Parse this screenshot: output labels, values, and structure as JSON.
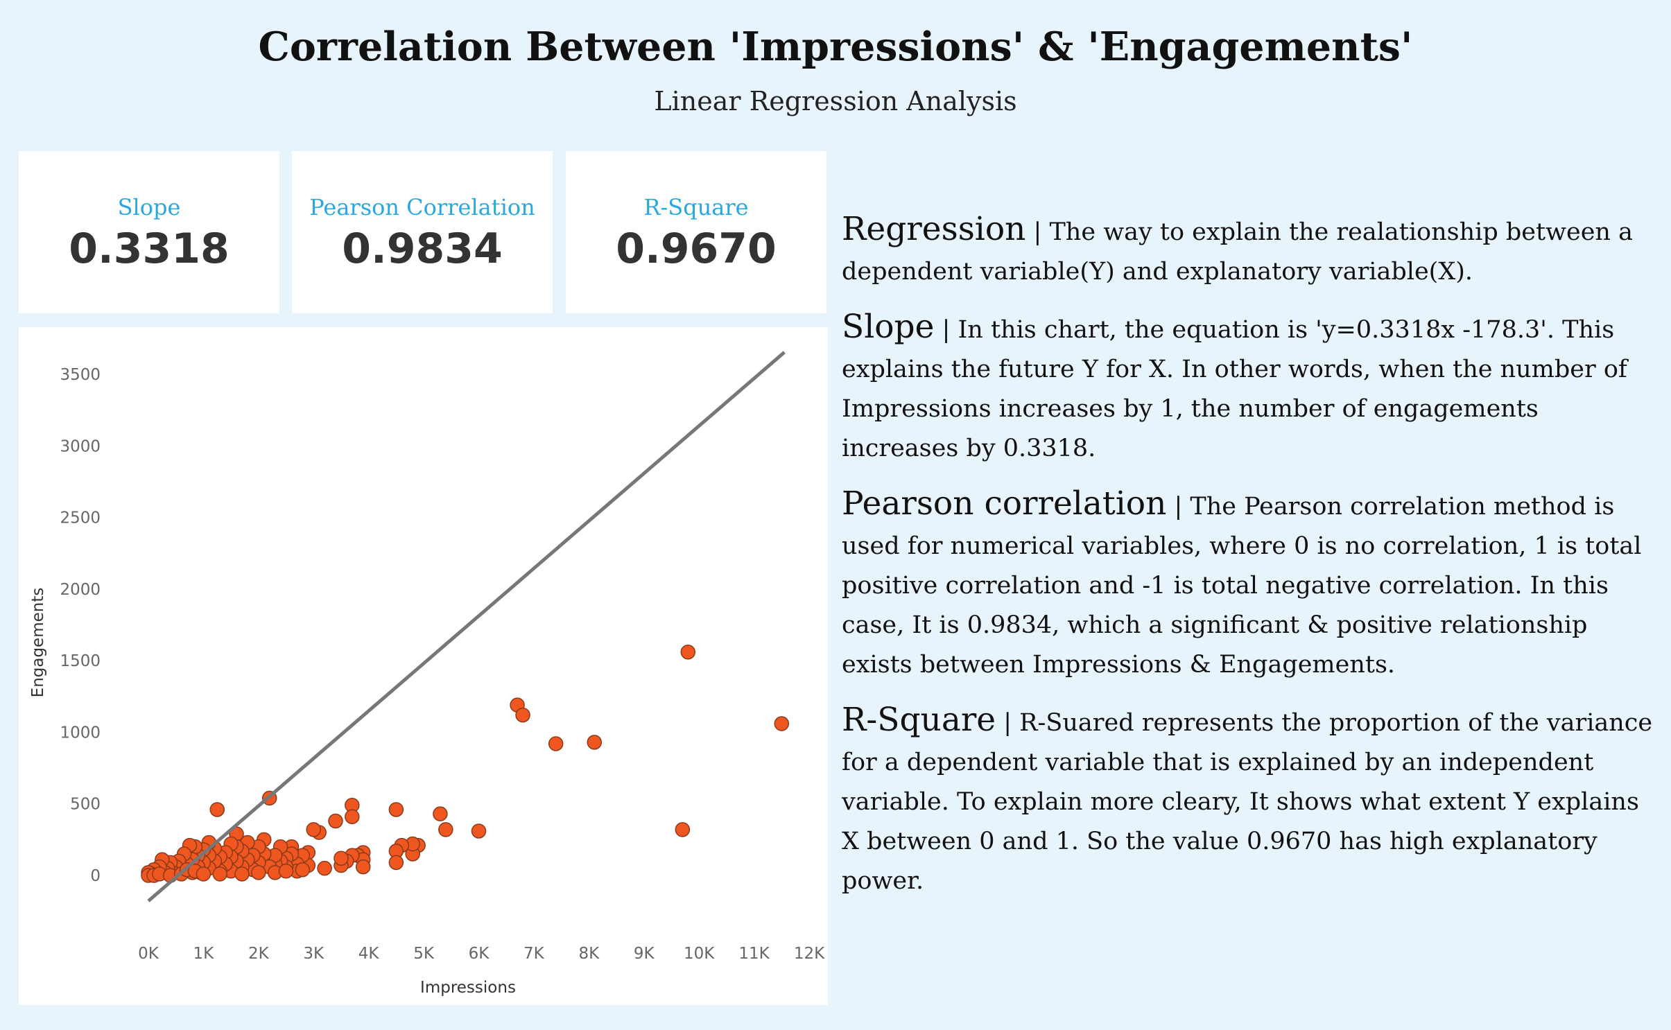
{
  "header": {
    "title": "Correlation Between 'Impressions' & 'Engagements'",
    "subtitle": "Linear Regression Analysis"
  },
  "kpis": [
    {
      "label": "Slope",
      "value": "0.3318"
    },
    {
      "label": "Pearson Correlation",
      "value": "0.9834"
    },
    {
      "label": "R-Square",
      "value": "0.9670"
    }
  ],
  "explanations": [
    {
      "term": "Regression",
      "text": " | The way to explain the realationship between a dependent variable(Y) and explanatory variable(X)."
    },
    {
      "term": "Slope",
      "text": " | In this chart, the equation is 'y=0.3318x -178.3'. This explains the future Y for X. In other words, when the number of Impressions increases by 1, the number of engagements increases by 0.3318."
    },
    {
      "term": "Pearson correlation",
      "text": " | The Pearson correlation method is used for numerical variables, where 0 is no correlation, 1 is total positive correlation and -1 is total negative correlation. In this case, It is 0.9834, which a significant & positive relationship exists between Impressions & Engagements."
    },
    {
      "term": "R-Square",
      "text": " | R-Suared represents the proportion of the variance for a dependent variable that is explained by an independent variable. To explain more cleary, It shows what extent Y explains X between 0 and 1. So the value 0.9670 has high explanatory power."
    }
  ],
  "colors": {
    "background": "#e8f4fc",
    "accent": "#29a8e0",
    "point_fill": "#f0561f",
    "point_stroke": "#8a3a1a",
    "trend_line": "#777777"
  },
  "chart_data": {
    "type": "scatter",
    "xlabel": "Impressions",
    "ylabel": "Engagements",
    "xlim": [
      0,
      12000
    ],
    "ylim": [
      -300,
      3500
    ],
    "x_ticks": [
      0,
      1000,
      2000,
      3000,
      4000,
      5000,
      6000,
      7000,
      8000,
      9000,
      10000,
      11000,
      12000
    ],
    "x_tick_labels": [
      "0K",
      "1K",
      "2K",
      "3K",
      "4K",
      "5K",
      "6K",
      "7K",
      "8K",
      "9K",
      "10K",
      "11K",
      "12K"
    ],
    "y_ticks": [
      0,
      500,
      1000,
      1500,
      2000,
      2500,
      3000,
      3500
    ],
    "y_tick_labels": [
      "0",
      "500",
      "1000",
      "1500",
      "2000",
      "2500",
      "3000",
      "3500"
    ],
    "grid": false,
    "trend_line": {
      "slope": 0.3318,
      "intercept": -178.3,
      "x_range": [
        0,
        11550
      ]
    },
    "points": [
      [
        9800,
        1560
      ],
      [
        11500,
        1060
      ],
      [
        9700,
        320
      ],
      [
        6700,
        1190
      ],
      [
        6800,
        1120
      ],
      [
        7400,
        920
      ],
      [
        8100,
        930
      ],
      [
        6000,
        310
      ],
      [
        5400,
        320
      ],
      [
        5300,
        430
      ],
      [
        4900,
        210
      ],
      [
        4800,
        150
      ],
      [
        4800,
        220
      ],
      [
        4600,
        210
      ],
      [
        4500,
        170
      ],
      [
        4500,
        460
      ],
      [
        4500,
        90
      ],
      [
        3700,
        490
      ],
      [
        3700,
        410
      ],
      [
        3400,
        380
      ],
      [
        3900,
        160
      ],
      [
        3800,
        140
      ],
      [
        3900,
        110
      ],
      [
        3900,
        60
      ],
      [
        3700,
        140
      ],
      [
        3600,
        100
      ],
      [
        3500,
        70
      ],
      [
        3500,
        120
      ],
      [
        3200,
        50
      ],
      [
        3100,
        300
      ],
      [
        3000,
        320
      ],
      [
        2900,
        160
      ],
      [
        2900,
        70
      ],
      [
        2800,
        140
      ],
      [
        2700,
        80
      ],
      [
        2700,
        30
      ],
      [
        2600,
        200
      ],
      [
        2600,
        150
      ],
      [
        2500,
        120
      ],
      [
        2500,
        60
      ],
      [
        2400,
        100
      ],
      [
        2400,
        200
      ],
      [
        2300,
        80
      ],
      [
        2300,
        140
      ],
      [
        2200,
        540
      ],
      [
        2200,
        60
      ],
      [
        2100,
        250
      ],
      [
        2100,
        150
      ],
      [
        2000,
        200
      ],
      [
        2000,
        90
      ],
      [
        1900,
        140
      ],
      [
        1900,
        40
      ],
      [
        1800,
        230
      ],
      [
        1800,
        110
      ],
      [
        1700,
        170
      ],
      [
        1700,
        60
      ],
      [
        1600,
        290
      ],
      [
        1600,
        200
      ],
      [
        1600,
        100
      ],
      [
        1500,
        220
      ],
      [
        1500,
        130
      ],
      [
        1500,
        30
      ],
      [
        1400,
        160
      ],
      [
        1400,
        80
      ],
      [
        1300,
        130
      ],
      [
        1300,
        30
      ],
      [
        1250,
        460
      ],
      [
        1200,
        100
      ],
      [
        1200,
        190
      ],
      [
        1100,
        230
      ],
      [
        1100,
        140
      ],
      [
        1100,
        50
      ],
      [
        1000,
        180
      ],
      [
        1000,
        90
      ],
      [
        950,
        20
      ],
      [
        900,
        140
      ],
      [
        900,
        60
      ],
      [
        850,
        200
      ],
      [
        800,
        110
      ],
      [
        800,
        20
      ],
      [
        750,
        210
      ],
      [
        700,
        80
      ],
      [
        650,
        150
      ],
      [
        600,
        30
      ],
      [
        550,
        100
      ],
      [
        500,
        60
      ],
      [
        450,
        20
      ],
      [
        400,
        90
      ],
      [
        350,
        50
      ],
      [
        300,
        20
      ],
      [
        250,
        110
      ],
      [
        200,
        60
      ],
      [
        150,
        20
      ],
      [
        100,
        40
      ],
      [
        50,
        10
      ],
      [
        0,
        20
      ],
      [
        0,
        0
      ],
      [
        100,
        0
      ],
      [
        200,
        10
      ],
      [
        400,
        0
      ],
      [
        600,
        10
      ],
      [
        700,
        40
      ],
      [
        850,
        30
      ],
      [
        1000,
        10
      ],
      [
        1300,
        10
      ],
      [
        1700,
        10
      ],
      [
        2000,
        20
      ],
      [
        2300,
        20
      ],
      [
        2500,
        30
      ],
      [
        2800,
        40
      ]
    ]
  }
}
